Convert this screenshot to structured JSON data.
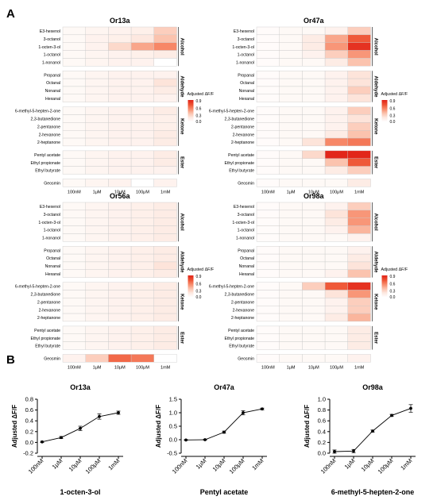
{
  "panels": {
    "A": "A",
    "B": "B"
  },
  "colors": {
    "scale": [
      "#ffffff",
      "#fde8e0",
      "#fbc1ab",
      "#f78a6a",
      "#ee5333",
      "#e2261a"
    ],
    "grid": "#c9c9c9"
  },
  "heatmap_rows": {
    "Alcohol": [
      "E3-hexenol",
      "3-octanol",
      "1-octen-3-ol",
      "1-octanol",
      "1-nonanol"
    ],
    "Aldehyde": [
      "Propanal",
      "Octanal",
      "Nonanal",
      "Hexanal"
    ],
    "Ketone": [
      "6-methyl-5-hepten-2-one",
      "2,3-butanedione",
      "2-pentanone",
      "2-hexanone",
      "2-heptanone"
    ],
    "Ester": [
      "Pentyl acetate",
      "Ethyl propionate",
      "Ethyl butyrate"
    ],
    "Other": [
      "Geosmin"
    ]
  },
  "concentrations": [
    "100nM",
    "1μM",
    "10μM",
    "100μM",
    "1mM"
  ],
  "colorbar": {
    "title": "Adjusted ΔF/F",
    "ticks": [
      "0.9",
      "0.6",
      "0.3",
      "0.0"
    ]
  },
  "chart_data": [
    {
      "type": "heatmap",
      "title": "Or13a",
      "rows": [
        "E3-hexenol",
        "3-octanol",
        "1-octen-3-ol",
        "1-octanol",
        "1-nonanol",
        "Propanal",
        "Octanal",
        "Nonanal",
        "Hexanal",
        "6-methyl-5-hepten-2-one",
        "2,3-butanedione",
        "2-pentanone",
        "2-hexanone",
        "2-heptanone",
        "Pentyl acetate",
        "Ethyl propionate",
        "Ethyl butyrate",
        "Geosmin"
      ],
      "cols": [
        "100nM",
        "1μM",
        "10μM",
        "100μM",
        "1mM"
      ],
      "values": [
        [
          0.05,
          0.08,
          0.1,
          0.12,
          0.3
        ],
        [
          0.05,
          0.1,
          0.12,
          0.18,
          0.35
        ],
        [
          0.05,
          0.1,
          0.25,
          0.45,
          0.55
        ],
        [
          0.05,
          0.08,
          0.1,
          0.12,
          0.15
        ],
        [
          0.05,
          0.08,
          0.1,
          0.1,
          0.0
        ],
        [
          0.05,
          0.08,
          0.1,
          0.1,
          0.1
        ],
        [
          0.05,
          0.08,
          0.1,
          0.1,
          0.2
        ],
        [
          0.05,
          0.08,
          0.1,
          0.1,
          0.15
        ],
        [
          0.05,
          0.08,
          0.1,
          0.1,
          0.1
        ],
        [
          0.05,
          0.08,
          0.1,
          0.1,
          0.15
        ],
        [
          0.05,
          0.08,
          0.1,
          0.1,
          0.12
        ],
        [
          0.05,
          0.08,
          0.1,
          0.1,
          0.12
        ],
        [
          0.05,
          0.08,
          0.1,
          0.1,
          0.15
        ],
        [
          0.05,
          0.08,
          0.1,
          0.1,
          0.15
        ],
        [
          0.05,
          0.08,
          0.1,
          0.1,
          0.15
        ],
        [
          0.05,
          0.08,
          0.1,
          0.1,
          0.15
        ],
        [
          0.05,
          0.08,
          0.1,
          0.1,
          0.1
        ],
        [
          0.05,
          0.08,
          0.1,
          0.0,
          0.1
        ]
      ],
      "range": [
        0,
        0.9
      ]
    },
    {
      "type": "heatmap",
      "title": "Or47a",
      "rows": [
        "E3-hexenol",
        "3-octanol",
        "1-octen-3-ol",
        "1-octanol",
        "1-nonanol",
        "Propanal",
        "Octanal",
        "Nonanal",
        "Hexanal",
        "6-methyl-5-hepten-2-one",
        "2,3-butanedione",
        "2-pentanone",
        "2-hexanone",
        "2-heptanone",
        "Pentyl acetate",
        "Ethyl propionate",
        "Ethyl butyrate",
        "Geosmin"
      ],
      "cols": [
        "100nM",
        "1μM",
        "10μM",
        "100μM",
        "1mM"
      ],
      "values": [
        [
          0.03,
          0.05,
          0.05,
          0.1,
          0.3
        ],
        [
          0.03,
          0.05,
          0.15,
          0.45,
          0.7
        ],
        [
          0.03,
          0.05,
          0.15,
          0.5,
          0.85
        ],
        [
          0.03,
          0.05,
          0.1,
          0.3,
          0.5
        ],
        [
          0.03,
          0.05,
          0.05,
          0.15,
          0.35
        ],
        [
          0.03,
          0.05,
          0.05,
          0.1,
          0.2
        ],
        [
          0.03,
          0.05,
          0.05,
          0.1,
          0.2
        ],
        [
          0.03,
          0.05,
          0.05,
          0.1,
          0.3
        ],
        [
          0.03,
          0.05,
          0.05,
          0.1,
          0.2
        ],
        [
          0.03,
          0.05,
          0.05,
          0.1,
          0.3
        ],
        [
          0.03,
          0.05,
          0.05,
          0.1,
          0.2
        ],
        [
          0.03,
          0.05,
          0.05,
          0.1,
          0.3
        ],
        [
          0.03,
          0.05,
          0.05,
          0.15,
          0.35
        ],
        [
          0.03,
          0.05,
          0.2,
          0.55,
          0.6
        ],
        [
          0.03,
          0.05,
          0.25,
          0.9,
          1.0
        ],
        [
          0.03,
          0.05,
          0.05,
          0.35,
          0.7
        ],
        [
          0.03,
          0.05,
          0.05,
          0.15,
          0.3
        ],
        [
          0.03,
          0.05,
          0.05,
          0.05,
          0.15
        ]
      ],
      "range": [
        0,
        0.9
      ]
    },
    {
      "type": "heatmap",
      "title": "Or56a",
      "rows": [
        "E3-hexenol",
        "3-octanol",
        "1-octen-3-ol",
        "1-octanol",
        "1-nonanol",
        "Propanal",
        "Octanal",
        "Nonanal",
        "Hexanal",
        "6-methyl-5-hepten-2-one",
        "2,3-butanedione",
        "2-pentanone",
        "2-hexanone",
        "2-heptanone",
        "Pentyl acetate",
        "Ethyl propionate",
        "Ethyl butyrate",
        "Geosmin"
      ],
      "cols": [
        "100nM",
        "1μM",
        "10μM",
        "100μM",
        "1mM"
      ],
      "values": [
        [
          0.05,
          0.08,
          0.1,
          0.12,
          0.15
        ],
        [
          0.05,
          0.08,
          0.1,
          0.12,
          0.15
        ],
        [
          0.05,
          0.08,
          0.1,
          0.12,
          0.15
        ],
        [
          0.05,
          0.08,
          0.1,
          0.12,
          0.15
        ],
        [
          0.05,
          0.08,
          0.1,
          0.12,
          0.15
        ],
        [
          0.05,
          0.08,
          0.1,
          0.12,
          0.15
        ],
        [
          0.05,
          0.08,
          0.1,
          0.12,
          0.15
        ],
        [
          0.05,
          0.08,
          0.1,
          0.12,
          0.2
        ],
        [
          0.05,
          0.08,
          0.1,
          0.12,
          0.15
        ],
        [
          0.05,
          0.08,
          0.1,
          0.12,
          0.15
        ],
        [
          0.05,
          0.08,
          0.1,
          0.12,
          0.15
        ],
        [
          0.05,
          0.08,
          0.1,
          0.12,
          0.15
        ],
        [
          0.05,
          0.08,
          0.1,
          0.12,
          0.15
        ],
        [
          0.05,
          0.08,
          0.1,
          0.12,
          0.15
        ],
        [
          0.05,
          0.08,
          0.1,
          0.12,
          0.15
        ],
        [
          0.05,
          0.08,
          0.1,
          0.12,
          0.15
        ],
        [
          0.05,
          0.08,
          0.1,
          0.12,
          0.15
        ],
        [
          0.1,
          0.3,
          0.65,
          0.6,
          0.0
        ]
      ],
      "range": [
        0,
        0.9
      ]
    },
    {
      "type": "heatmap",
      "title": "Or98a",
      "rows": [
        "E3-hexenol",
        "3-octanol",
        "1-octen-3-ol",
        "1-octanol",
        "1-nonanol",
        "Propanal",
        "Octanal",
        "Nonanal",
        "Hexanal",
        "6-methyl-5-hepten-2-one",
        "2,3-butanedione",
        "2-pentanone",
        "2-hexanone",
        "2-heptanone",
        "Pentyl acetate",
        "Ethyl propionate",
        "Ethyl butyrate",
        "Geosmin"
      ],
      "cols": [
        "100nM",
        "1μM",
        "10μM",
        "100μM",
        "1mM"
      ],
      "values": [
        [
          0.03,
          0.05,
          0.05,
          0.1,
          0.3
        ],
        [
          0.03,
          0.05,
          0.05,
          0.2,
          0.5
        ],
        [
          0.03,
          0.05,
          0.05,
          0.15,
          0.5
        ],
        [
          0.03,
          0.05,
          0.05,
          0.1,
          0.4
        ],
        [
          0.03,
          0.05,
          0.05,
          0.05,
          0.1
        ],
        [
          0.03,
          0.05,
          0.05,
          0.05,
          0.1
        ],
        [
          0.03,
          0.05,
          0.05,
          0.05,
          0.15
        ],
        [
          0.03,
          0.05,
          0.05,
          0.05,
          0.2
        ],
        [
          0.03,
          0.05,
          0.05,
          0.1,
          0.35
        ],
        [
          0.03,
          0.05,
          0.3,
          0.7,
          0.85
        ],
        [
          0.03,
          0.05,
          0.05,
          0.2,
          0.5
        ],
        [
          0.03,
          0.05,
          0.05,
          0.1,
          0.3
        ],
        [
          0.03,
          0.05,
          0.05,
          0.1,
          0.3
        ],
        [
          0.03,
          0.05,
          0.05,
          0.15,
          0.4
        ],
        [
          0.03,
          0.05,
          0.05,
          0.05,
          0.15
        ],
        [
          0.03,
          0.05,
          0.05,
          0.05,
          0.15
        ],
        [
          0.03,
          0.05,
          0.05,
          0.05,
          0.15
        ],
        [
          0.03,
          0.05,
          0.05,
          0.05,
          0.1
        ]
      ],
      "range": [
        0,
        0.9
      ]
    },
    {
      "type": "line",
      "title": "Or13a",
      "xlabel": "1-octen-3-ol",
      "ylabel": "Adjusted  ΔF/F",
      "categories": [
        "100nM",
        "1μM",
        "10μM",
        "100μM",
        "1mM"
      ],
      "values": [
        0.01,
        0.09,
        0.26,
        0.48,
        0.55
      ],
      "errors": [
        0.01,
        0.02,
        0.04,
        0.05,
        0.03
      ],
      "ylim": [
        -0.2,
        0.8
      ],
      "yticks": [
        "-0.2",
        "0.0",
        "0.2",
        "0.4",
        "0.6",
        "0.8"
      ]
    },
    {
      "type": "line",
      "title": "Or47a",
      "xlabel": "Pentyl acetate",
      "ylabel": "Adjusted  ΔF/F",
      "categories": [
        "100nM",
        "1μM",
        "10μM",
        "100μM",
        "1mM"
      ],
      "values": [
        -0.01,
        0.0,
        0.28,
        1.0,
        1.14
      ],
      "errors": [
        0.01,
        0.01,
        0.04,
        0.08,
        0.03
      ],
      "ylim": [
        -0.5,
        1.5
      ],
      "yticks": [
        "-0.5",
        "0.0",
        "0.5",
        "1.0",
        "1.5"
      ]
    },
    {
      "type": "line",
      "title": "Or98a",
      "xlabel": "6-methyl-5-hepten-2-one",
      "ylabel": "Adjusted  ΔF/F",
      "categories": [
        "100nM",
        "1μM",
        "10μM",
        "100μM",
        "1mM"
      ],
      "values": [
        0.03,
        0.04,
        0.41,
        0.7,
        0.83
      ],
      "errors": [
        0.03,
        0.03,
        0.02,
        0.02,
        0.07
      ],
      "ylim": [
        0.0,
        1.0
      ],
      "yticks": [
        "0.0",
        "0.2",
        "0.4",
        "0.6",
        "0.8",
        "1.0"
      ]
    }
  ]
}
